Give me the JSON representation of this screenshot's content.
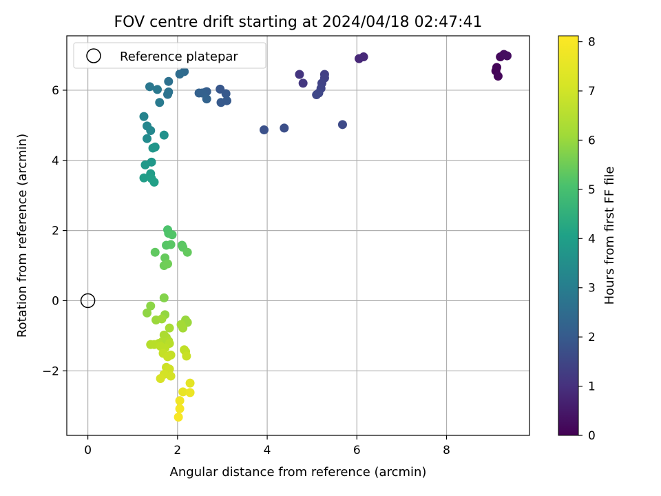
{
  "chart_data": {
    "type": "scatter",
    "title": "FOV centre drift starting at 2024/04/18 02:47:41",
    "xlabel": "Angular distance from reference (arcmin)",
    "ylabel": "Rotation from reference (arcmin)",
    "xlim": [
      -0.47,
      9.85
    ],
    "ylim": [
      -3.84,
      7.55
    ],
    "xticks": [
      0,
      2,
      4,
      6,
      8
    ],
    "yticks": [
      -2,
      0,
      2,
      4,
      6
    ],
    "grid": true,
    "legend": {
      "placement": "top-left",
      "entries": [
        "Reference platepar"
      ]
    },
    "reference_point": {
      "name": "Reference platepar",
      "x": 0,
      "y": 0
    },
    "colorbar": {
      "label": "Hours from first FF file",
      "colormap": "viridis",
      "range": [
        0,
        8.12
      ],
      "ticks": [
        0,
        1,
        2,
        3,
        4,
        5,
        6,
        7,
        8
      ]
    },
    "series": [
      {
        "points": [
          {
            "x": 9.1,
            "y": 6.55,
            "t": 0.05
          },
          {
            "x": 9.12,
            "y": 6.65,
            "t": 0.1
          },
          {
            "x": 9.15,
            "y": 6.4,
            "t": 0.15
          },
          {
            "x": 9.2,
            "y": 6.95,
            "t": 0.2
          },
          {
            "x": 9.28,
            "y": 7.02,
            "t": 0.25
          },
          {
            "x": 9.35,
            "y": 6.98,
            "t": 0.3
          },
          {
            "x": 6.05,
            "y": 6.9,
            "t": 0.9
          },
          {
            "x": 6.15,
            "y": 6.95,
            "t": 0.95
          },
          {
            "x": 4.72,
            "y": 6.45,
            "t": 1.25
          },
          {
            "x": 4.8,
            "y": 6.2,
            "t": 1.3
          },
          {
            "x": 5.28,
            "y": 6.45,
            "t": 1.5
          },
          {
            "x": 5.28,
            "y": 6.35,
            "t": 1.55
          },
          {
            "x": 5.22,
            "y": 6.2,
            "t": 1.6
          },
          {
            "x": 5.2,
            "y": 6.05,
            "t": 1.65
          },
          {
            "x": 5.15,
            "y": 5.92,
            "t": 1.7
          },
          {
            "x": 5.1,
            "y": 5.87,
            "t": 1.75
          },
          {
            "x": 5.68,
            "y": 5.02,
            "t": 1.8
          },
          {
            "x": 4.38,
            "y": 4.92,
            "t": 1.95
          },
          {
            "x": 3.93,
            "y": 4.87,
            "t": 2.0
          },
          {
            "x": 2.95,
            "y": 6.03,
            "t": 2.2
          },
          {
            "x": 3.08,
            "y": 5.9,
            "t": 2.25
          },
          {
            "x": 3.1,
            "y": 5.7,
            "t": 2.3
          },
          {
            "x": 2.97,
            "y": 5.65,
            "t": 2.3
          },
          {
            "x": 2.65,
            "y": 5.96,
            "t": 2.4
          },
          {
            "x": 2.6,
            "y": 5.93,
            "t": 2.45
          },
          {
            "x": 2.48,
            "y": 5.92,
            "t": 2.5
          },
          {
            "x": 2.55,
            "y": 5.92,
            "t": 2.5
          },
          {
            "x": 2.65,
            "y": 5.75,
            "t": 2.55
          },
          {
            "x": 2.15,
            "y": 6.53,
            "t": 2.8
          },
          {
            "x": 2.05,
            "y": 6.46,
            "t": 2.85
          },
          {
            "x": 1.8,
            "y": 6.25,
            "t": 3.0
          },
          {
            "x": 1.8,
            "y": 5.95,
            "t": 3.05
          },
          {
            "x": 1.78,
            "y": 5.88,
            "t": 3.1
          },
          {
            "x": 1.38,
            "y": 6.1,
            "t": 3.2
          },
          {
            "x": 1.55,
            "y": 6.02,
            "t": 3.25
          },
          {
            "x": 1.6,
            "y": 5.65,
            "t": 3.3
          },
          {
            "x": 1.25,
            "y": 5.25,
            "t": 3.6
          },
          {
            "x": 1.32,
            "y": 4.98,
            "t": 3.7
          },
          {
            "x": 1.4,
            "y": 4.85,
            "t": 3.75
          },
          {
            "x": 1.32,
            "y": 4.62,
            "t": 3.85
          },
          {
            "x": 1.7,
            "y": 4.72,
            "t": 4.05
          },
          {
            "x": 1.5,
            "y": 4.38,
            "t": 4.2
          },
          {
            "x": 1.45,
            "y": 4.35,
            "t": 4.25
          },
          {
            "x": 1.42,
            "y": 3.95,
            "t": 4.3
          },
          {
            "x": 1.28,
            "y": 3.87,
            "t": 4.35
          },
          {
            "x": 1.4,
            "y": 3.62,
            "t": 4.45
          },
          {
            "x": 1.25,
            "y": 3.5,
            "t": 4.5
          },
          {
            "x": 1.42,
            "y": 3.48,
            "t": 4.55
          },
          {
            "x": 1.48,
            "y": 3.38,
            "t": 4.6
          },
          {
            "x": 1.78,
            "y": 2.02,
            "t": 5.8
          },
          {
            "x": 1.8,
            "y": 1.92,
            "t": 5.85
          },
          {
            "x": 1.88,
            "y": 1.88,
            "t": 5.9
          },
          {
            "x": 1.75,
            "y": 1.58,
            "t": 5.95
          },
          {
            "x": 1.85,
            "y": 1.6,
            "t": 6.0
          },
          {
            "x": 2.1,
            "y": 1.58,
            "t": 6.0
          },
          {
            "x": 2.12,
            "y": 1.52,
            "t": 6.05
          },
          {
            "x": 1.5,
            "y": 1.38,
            "t": 6.1
          },
          {
            "x": 2.22,
            "y": 1.38,
            "t": 6.15
          },
          {
            "x": 1.72,
            "y": 1.22,
            "t": 6.2
          },
          {
            "x": 1.7,
            "y": 1.0,
            "t": 6.3
          },
          {
            "x": 1.78,
            "y": 1.05,
            "t": 6.35
          },
          {
            "x": 1.7,
            "y": 0.08,
            "t": 6.6
          },
          {
            "x": 1.4,
            "y": -0.15,
            "t": 6.7
          },
          {
            "x": 1.32,
            "y": -0.35,
            "t": 6.75
          },
          {
            "x": 1.72,
            "y": -0.4,
            "t": 6.8
          },
          {
            "x": 2.18,
            "y": -0.55,
            "t": 6.85
          },
          {
            "x": 2.22,
            "y": -0.62,
            "t": 6.9
          },
          {
            "x": 1.52,
            "y": -0.55,
            "t": 6.9
          },
          {
            "x": 1.65,
            "y": -0.52,
            "t": 6.95
          },
          {
            "x": 2.08,
            "y": -0.68,
            "t": 7.0
          },
          {
            "x": 2.12,
            "y": -0.78,
            "t": 7.0
          },
          {
            "x": 1.82,
            "y": -0.78,
            "t": 7.05
          },
          {
            "x": 1.7,
            "y": -0.98,
            "t": 7.1
          },
          {
            "x": 1.75,
            "y": -1.05,
            "t": 7.1
          },
          {
            "x": 1.8,
            "y": -1.15,
            "t": 7.15
          },
          {
            "x": 1.65,
            "y": -1.18,
            "t": 7.15
          },
          {
            "x": 1.58,
            "y": -1.22,
            "t": 7.2
          },
          {
            "x": 1.4,
            "y": -1.25,
            "t": 7.2
          },
          {
            "x": 1.48,
            "y": -1.25,
            "t": 7.25
          },
          {
            "x": 1.82,
            "y": -1.22,
            "t": 7.25
          },
          {
            "x": 1.62,
            "y": -1.3,
            "t": 7.3
          },
          {
            "x": 1.72,
            "y": -1.35,
            "t": 7.3
          },
          {
            "x": 2.15,
            "y": -1.4,
            "t": 7.35
          },
          {
            "x": 2.18,
            "y": -1.45,
            "t": 7.35
          },
          {
            "x": 1.68,
            "y": -1.5,
            "t": 7.4
          },
          {
            "x": 1.85,
            "y": -1.55,
            "t": 7.4
          },
          {
            "x": 1.78,
            "y": -1.6,
            "t": 7.45
          },
          {
            "x": 2.2,
            "y": -1.58,
            "t": 7.45
          },
          {
            "x": 1.75,
            "y": -1.9,
            "t": 7.5
          },
          {
            "x": 1.82,
            "y": -1.95,
            "t": 7.55
          },
          {
            "x": 1.7,
            "y": -2.1,
            "t": 7.6
          },
          {
            "x": 1.85,
            "y": -2.15,
            "t": 7.6
          },
          {
            "x": 1.62,
            "y": -2.22,
            "t": 7.65
          },
          {
            "x": 2.28,
            "y": -2.35,
            "t": 7.8
          },
          {
            "x": 2.12,
            "y": -2.6,
            "t": 7.85
          },
          {
            "x": 2.28,
            "y": -2.62,
            "t": 7.9
          },
          {
            "x": 2.05,
            "y": -2.85,
            "t": 7.95
          },
          {
            "x": 2.05,
            "y": -3.08,
            "t": 8.0
          },
          {
            "x": 2.02,
            "y": -3.32,
            "t": 8.05
          }
        ]
      }
    ]
  }
}
